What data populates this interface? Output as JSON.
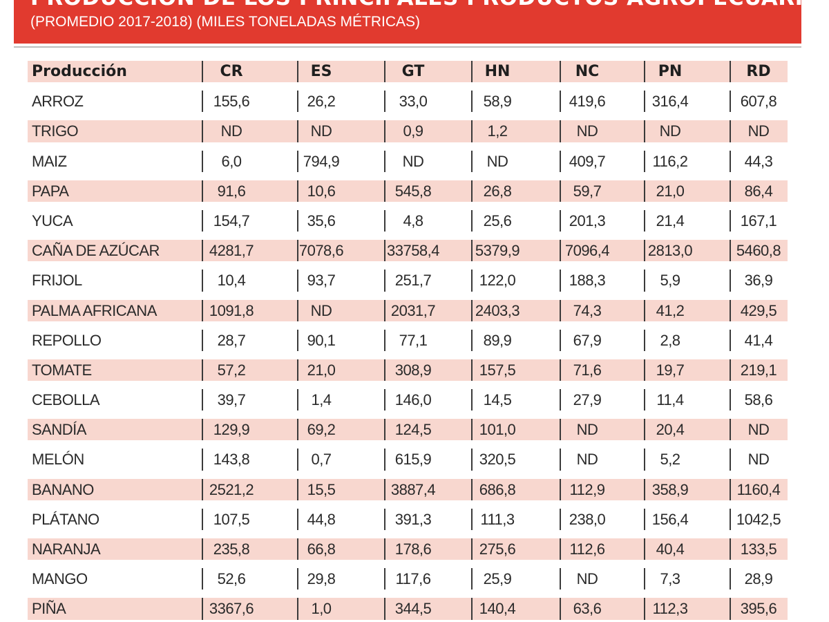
{
  "title": "PRODUCCIÓN DE LOS PRINCIPALES PRODUCTOS AGROPECUARIOS",
  "subtitle": "(PROMEDIO 2017-2018) (MILES TONELADAS MÉTRICAS)",
  "chart_data": {
    "type": "table",
    "title": "PRODUCCIÓN DE LOS PRINCIPALES PRODUCTOS AGROPECUARIOS",
    "subtitle": "(PROMEDIO 2017-2018) (MILES TONELADAS MÉTRICAS)",
    "row_header": "Producción",
    "columns": [
      "CR",
      "ES",
      "GT",
      "HN",
      "NC",
      "PN",
      "RD"
    ],
    "rows": [
      {
        "name": "ARROZ",
        "values": [
          "155,6",
          "26,2",
          "33,0",
          "58,9",
          "419,6",
          "316,4",
          "607,8"
        ]
      },
      {
        "name": "TRIGO",
        "values": [
          "ND",
          "ND",
          "0,9",
          "1,2",
          "ND",
          "ND",
          "ND"
        ]
      },
      {
        "name": "MAIZ",
        "values": [
          "6,0",
          "794,9",
          "ND",
          "ND",
          "409,7",
          "116,2",
          "44,3"
        ]
      },
      {
        "name": "PAPA",
        "values": [
          "91,6",
          "10,6",
          "545,8",
          "26,8",
          "59,7",
          "21,0",
          "86,4"
        ]
      },
      {
        "name": "YUCA",
        "values": [
          "154,7",
          "35,6",
          "4,8",
          "25,6",
          "201,3",
          "21,4",
          "167,1"
        ]
      },
      {
        "name": "CAÑA DE AZÚCAR",
        "values": [
          "4281,7",
          "7078,6",
          "33758,4",
          "5379,9",
          "7096,4",
          "2813,0",
          "5460,8"
        ]
      },
      {
        "name": "FRIJOL",
        "values": [
          "10,4",
          "93,7",
          "251,7",
          "122,0",
          "188,3",
          "5,9",
          "36,9"
        ]
      },
      {
        "name": "PALMA AFRICANA",
        "values": [
          "1091,8",
          "ND",
          "2031,7",
          "2403,3",
          "74,3",
          "41,2",
          "429,5"
        ]
      },
      {
        "name": "REPOLLO",
        "values": [
          "28,7",
          "90,1",
          "77,1",
          "89,9",
          "67,9",
          "2,8",
          "41,4"
        ]
      },
      {
        "name": "TOMATE",
        "values": [
          "57,2",
          "21,0",
          "308,9",
          "157,5",
          "71,6",
          "19,7",
          "219,1"
        ]
      },
      {
        "name": "CEBOLLA",
        "values": [
          "39,7",
          "1,4",
          "146,0",
          "14,5",
          "27,9",
          "11,4",
          "58,6"
        ]
      },
      {
        "name": "SANDÍA",
        "values": [
          "129,9",
          "69,2",
          "124,5",
          "101,0",
          "ND",
          "20,4",
          "ND"
        ]
      },
      {
        "name": "MELÓN",
        "values": [
          "143,8",
          "0,7",
          "615,9",
          "320,5",
          "ND",
          "5,2",
          "ND"
        ]
      },
      {
        "name": "BANANO",
        "values": [
          "2521,2",
          "15,5",
          "3887,4",
          "686,8",
          "112,9",
          "358,9",
          "1160,4"
        ]
      },
      {
        "name": "PLÁTANO",
        "values": [
          "107,5",
          "44,8",
          "391,3",
          "111,3",
          "238,0",
          "156,4",
          "1042,5"
        ]
      },
      {
        "name": "NARANJA",
        "values": [
          "235,8",
          "66,8",
          "178,6",
          "275,6",
          "112,6",
          "40,4",
          "133,5"
        ]
      },
      {
        "name": "MANGO",
        "values": [
          "52,6",
          "29,8",
          "117,6",
          "25,9",
          "ND",
          "7,3",
          "28,9"
        ]
      },
      {
        "name": "PIÑA",
        "values": [
          "3367,6",
          "1,0",
          "344,5",
          "140,4",
          "63,6",
          "112,3",
          "395,6"
        ]
      }
    ]
  },
  "colors": {
    "banner": "#e13a2f",
    "row_shade": "#f8d7cf",
    "text": "#2a2a2a"
  }
}
